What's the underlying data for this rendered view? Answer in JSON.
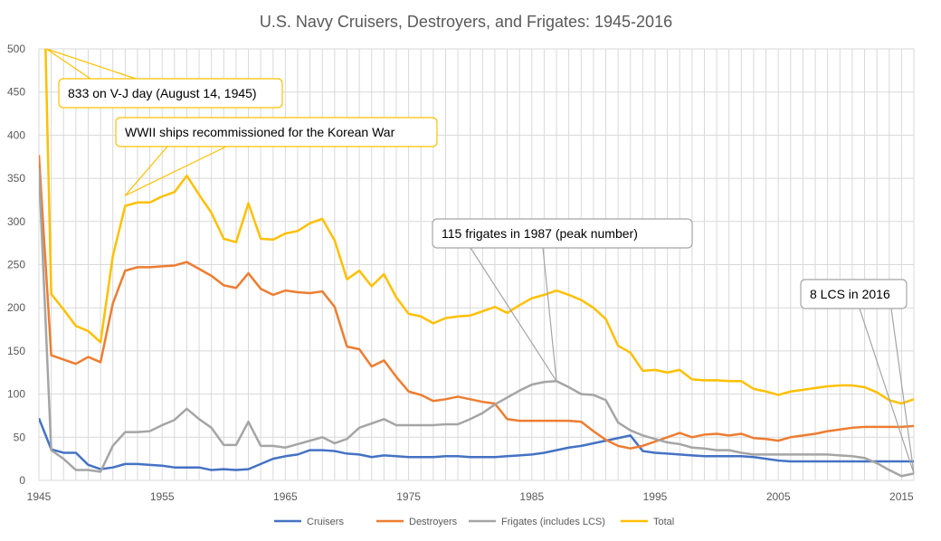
{
  "chart_data": {
    "type": "line",
    "title": "U.S. Navy Cruisers, Destroyers, and Frigates: 1945-2016",
    "xlabel": "",
    "ylabel": "",
    "xlim": [
      1945,
      2016
    ],
    "ylim": [
      0,
      500
    ],
    "x_ticks": [
      1945,
      1955,
      1965,
      1975,
      1985,
      1995,
      2005,
      2015
    ],
    "y_ticks": [
      0,
      50,
      100,
      150,
      200,
      250,
      300,
      350,
      400,
      450,
      500
    ],
    "grid": true,
    "legend_position": "bottom",
    "x": [
      1945,
      1946,
      1947,
      1948,
      1949,
      1950,
      1951,
      1952,
      1953,
      1954,
      1955,
      1956,
      1957,
      1958,
      1959,
      1960,
      1961,
      1962,
      1963,
      1964,
      1965,
      1966,
      1967,
      1968,
      1969,
      1970,
      1971,
      1972,
      1973,
      1974,
      1975,
      1976,
      1977,
      1978,
      1979,
      1980,
      1981,
      1982,
      1983,
      1984,
      1985,
      1986,
      1987,
      1988,
      1989,
      1990,
      1991,
      1992,
      1993,
      1994,
      1995,
      1996,
      1997,
      1998,
      1999,
      2000,
      2001,
      2002,
      2003,
      2004,
      2005,
      2006,
      2007,
      2008,
      2009,
      2010,
      2011,
      2012,
      2013,
      2014,
      2015,
      2016
    ],
    "series": [
      {
        "name": "Cruisers",
        "color": "#4472C4",
        "values": [
          72,
          36,
          32,
          32,
          18,
          13,
          15,
          19,
          19,
          18,
          17,
          15,
          15,
          15,
          12,
          13,
          12,
          13,
          19,
          25,
          28,
          30,
          35,
          35,
          34,
          31,
          30,
          27,
          29,
          28,
          27,
          27,
          27,
          28,
          28,
          27,
          27,
          27,
          28,
          29,
          30,
          32,
          35,
          38,
          40,
          43,
          46,
          49,
          52,
          34,
          32,
          31,
          30,
          29,
          28,
          28,
          28,
          28,
          27,
          25,
          23,
          22,
          22,
          22,
          22,
          22,
          22,
          22,
          22,
          22,
          22,
          22
        ]
      },
      {
        "name": "Destroyers",
        "color": "#ED7D31",
        "values": [
          377,
          145,
          140,
          135,
          143,
          137,
          205,
          243,
          247,
          247,
          248,
          249,
          253,
          245,
          237,
          226,
          223,
          240,
          222,
          215,
          220,
          218,
          217,
          219,
          201,
          155,
          152,
          132,
          139,
          120,
          103,
          99,
          92,
          94,
          97,
          94,
          91,
          89,
          71,
          69,
          69,
          69,
          69,
          69,
          68,
          57,
          47,
          40,
          37,
          40,
          45,
          50,
          55,
          50,
          53,
          54,
          52,
          54,
          49,
          48,
          46,
          50,
          52,
          54,
          57,
          59,
          61,
          62,
          62,
          62,
          62,
          63
        ]
      },
      {
        "name": "Frigates (includes LCS)",
        "color": "#A5A5A5",
        "values": [
          361,
          35,
          25,
          12,
          12,
          10,
          40,
          56,
          56,
          57,
          64,
          70,
          83,
          71,
          61,
          41,
          41,
          68,
          40,
          40,
          38,
          42,
          46,
          50,
          43,
          48,
          61,
          66,
          71,
          64,
          64,
          64,
          64,
          65,
          65,
          71,
          78,
          88,
          96,
          104,
          111,
          114,
          115,
          108,
          100,
          99,
          93,
          67,
          58,
          52,
          48,
          44,
          42,
          38,
          37,
          35,
          35,
          32,
          30,
          30,
          30,
          30,
          30,
          30,
          30,
          29,
          28,
          26,
          20,
          12,
          5,
          8
        ]
      },
      {
        "name": "Total",
        "color": "#FFC000",
        "values": [
          833,
          216,
          198,
          179,
          173,
          160,
          260,
          318,
          322,
          322,
          329,
          334,
          353,
          331,
          310,
          280,
          276,
          321,
          280,
          279,
          286,
          289,
          298,
          303,
          278,
          233,
          243,
          225,
          239,
          212,
          193,
          190,
          182,
          188,
          190,
          191,
          196,
          201,
          194,
          203,
          211,
          215,
          220,
          215,
          209,
          200,
          187,
          156,
          148,
          127,
          128,
          125,
          128,
          117,
          116,
          116,
          115,
          115,
          106,
          103,
          99,
          103,
          105,
          107,
          109,
          110,
          110,
          108,
          102,
          93,
          89,
          94
        ]
      }
    ],
    "annotations": [
      {
        "text": "833 on V-J day (August 14, 1945)",
        "target": [
          1945,
          500
        ]
      },
      {
        "text": "WWII ships recommissioned for the Korean War",
        "target": [
          1952,
          330
        ]
      },
      {
        "text": "115 frigates in 1987 (peak number)",
        "target": [
          1987,
          115
        ]
      },
      {
        "text": "8 LCS in 2016",
        "target": [
          2016,
          8
        ]
      }
    ]
  }
}
